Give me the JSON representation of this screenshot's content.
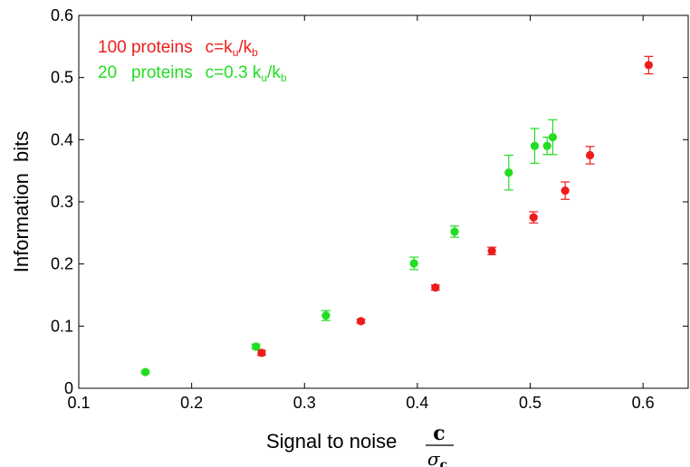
{
  "chart_data": {
    "type": "scatter",
    "xlabel": "Signal to noise",
    "xlabel_fraction": {
      "numerator": "c",
      "denominator": "σ",
      "denominator_sub": "c"
    },
    "ylabel": "Information  bits",
    "xlim": [
      0.1,
      0.64
    ],
    "ylim": [
      0,
      0.6
    ],
    "xticks": [
      {
        "value": 0.1,
        "label": "0.1"
      },
      {
        "value": 0.2,
        "label": "0.2"
      },
      {
        "value": 0.3,
        "label": "0.3"
      },
      {
        "value": 0.4,
        "label": "0.4"
      },
      {
        "value": 0.5,
        "label": "0.5"
      },
      {
        "value": 0.6,
        "label": "0.6"
      }
    ],
    "yticks": [
      {
        "value": 0,
        "label": "0"
      },
      {
        "value": 0.1,
        "label": "0.1"
      },
      {
        "value": 0.2,
        "label": "0.2"
      },
      {
        "value": 0.3,
        "label": "0.3"
      },
      {
        "value": 0.4,
        "label": "0.4"
      },
      {
        "value": 0.5,
        "label": "0.5"
      },
      {
        "value": 0.6,
        "label": "0.6"
      }
    ],
    "grid": false,
    "legend_position": "top-left",
    "series": [
      {
        "color": "#ee1c1c",
        "legend": {
          "count": "100 proteins",
          "formula_prefix": "c=k",
          "sub1": "u",
          "mid": "/k",
          "sub2": "b"
        },
        "points": [
          {
            "x": 0.262,
            "y": 0.057,
            "err": 0.004
          },
          {
            "x": 0.35,
            "y": 0.108,
            "err": 0.003
          },
          {
            "x": 0.416,
            "y": 0.162,
            "err": 0.004
          },
          {
            "x": 0.466,
            "y": 0.221,
            "err": 0.006
          },
          {
            "x": 0.503,
            "y": 0.275,
            "err": 0.009
          },
          {
            "x": 0.531,
            "y": 0.318,
            "err": 0.014
          },
          {
            "x": 0.553,
            "y": 0.375,
            "err": 0.014
          },
          {
            "x": 0.605,
            "y": 0.52,
            "err": 0.014
          }
        ]
      },
      {
        "color": "#22dd22",
        "legend": {
          "count": "20   proteins",
          "formula_prefix": "c=0.3 k",
          "sub1": "u",
          "mid": "/k",
          "sub2": "b"
        },
        "points": [
          {
            "x": 0.159,
            "y": 0.026,
            "err": 0.002
          },
          {
            "x": 0.257,
            "y": 0.067,
            "err": 0.004
          },
          {
            "x": 0.319,
            "y": 0.117,
            "err": 0.008
          },
          {
            "x": 0.397,
            "y": 0.201,
            "err": 0.01
          },
          {
            "x": 0.433,
            "y": 0.252,
            "err": 0.009
          },
          {
            "x": 0.481,
            "y": 0.347,
            "err": 0.028
          },
          {
            "x": 0.504,
            "y": 0.39,
            "err": 0.028
          },
          {
            "x": 0.515,
            "y": 0.39,
            "err": 0.014
          },
          {
            "x": 0.52,
            "y": 0.404,
            "err": 0.028
          }
        ]
      }
    ]
  }
}
